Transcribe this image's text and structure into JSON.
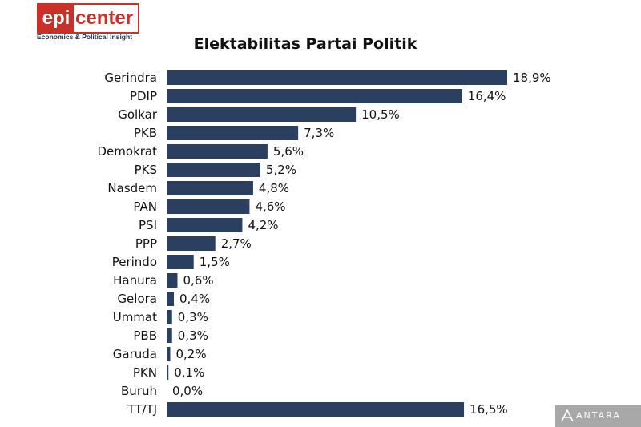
{
  "logo": {
    "epi": "epi",
    "center": "center",
    "tagline": "Economics & Political Insight",
    "color": "#c8302a"
  },
  "chart_data": {
    "type": "bar",
    "orientation": "horizontal",
    "title": "Elektabilitas Partai Politik",
    "bar_color": "#2b4061",
    "grid": false,
    "legend": "none",
    "xlim": [
      0,
      18.9
    ],
    "categories": [
      "Gerindra",
      "PDIP",
      "Golkar",
      "PKB",
      "Demokrat",
      "PKS",
      "Nasdem",
      "PAN",
      "PSI",
      "PPP",
      "Perindo",
      "Hanura",
      "Gelora",
      "Ummat",
      "PBB",
      "Garuda",
      "PKN",
      "Buruh",
      "TT/TJ"
    ],
    "values": [
      18.9,
      16.4,
      10.5,
      7.3,
      5.6,
      5.2,
      4.8,
      4.6,
      4.2,
      2.7,
      1.5,
      0.6,
      0.4,
      0.3,
      0.3,
      0.2,
      0.1,
      0.0,
      16.5
    ],
    "value_labels": [
      "18,9%",
      "16,4%",
      "10,5%",
      "7,3%",
      "5,6%",
      "5,2%",
      "4,8%",
      "4,6%",
      "4,2%",
      "2,7%",
      "1,5%",
      "0,6%",
      "0,4%",
      "0,3%",
      "0,3%",
      "0,2%",
      "0,1%",
      "0,0%",
      "16,5%"
    ]
  },
  "watermark": {
    "text": "ANTARA",
    "icon": "antara-logo-icon"
  }
}
